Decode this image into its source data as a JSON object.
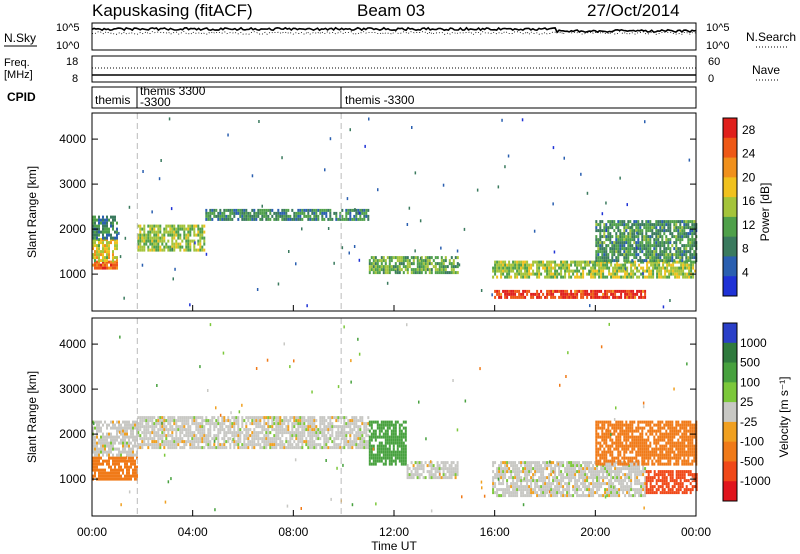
{
  "header": {
    "station": "Kapuskasing (fitACF)",
    "beam": "Beam 03",
    "date": "27/Oct/2014"
  },
  "top_panels": {
    "nsky_label": "N.Sky",
    "nsky_ticks": [
      "10^5",
      "10^0"
    ],
    "nsearch_label": "N.Search",
    "nsearch_ticks": [
      "10^5",
      "10^0"
    ],
    "freq_label": "Freq.",
    "freq_unit": "[MHz]",
    "freq_ticks": [
      "18",
      "8"
    ],
    "nave_label": "Nave",
    "nave_ticks": [
      "60",
      "0"
    ],
    "cpid_label": "CPID",
    "cpid_segments": [
      {
        "start": 0.0,
        "end": 1.8,
        "lines": [
          "themis"
        ]
      },
      {
        "start": 1.8,
        "end": 9.9,
        "lines": [
          "themis 3300",
          "-3300"
        ]
      },
      {
        "start": 9.9,
        "end": 24.0,
        "lines": [
          "themis -3300"
        ]
      }
    ]
  },
  "chart_data": [
    {
      "type": "heatmap",
      "title": "",
      "xlabel": "Time UT",
      "ylabel": "Slant Range [km]",
      "xlim": [
        0,
        24
      ],
      "ylim": [
        180,
        4580
      ],
      "x_ticks": [
        "00:00",
        "04:00",
        "08:00",
        "12:00",
        "16:00",
        "20:00",
        "00:00"
      ],
      "y_ticks": [
        1000,
        2000,
        3000,
        4000
      ],
      "colorbar": {
        "label": "Power [dB]",
        "ticks": [
          4,
          8,
          12,
          16,
          20,
          24,
          28
        ],
        "range": [
          0,
          30
        ],
        "colors": [
          "#1f32d6",
          "#2a5fb0",
          "#3a7a5e",
          "#4fa04a",
          "#a4c43a",
          "#f0c11e",
          "#f0901c",
          "#ee5816",
          "#e0201c"
        ]
      },
      "bands": [
        {
          "t0": 0.0,
          "t1": 1.0,
          "r0": 1100,
          "r1": 1300,
          "value": 24
        },
        {
          "t0": 0.0,
          "t1": 1.0,
          "r0": 1300,
          "r1": 1800,
          "value": 17
        },
        {
          "t0": 0.0,
          "t1": 1.0,
          "r0": 1800,
          "r1": 2300,
          "value": 8
        },
        {
          "t0": 1.8,
          "t1": 4.5,
          "r0": 1500,
          "r1": 2100,
          "value": 14
        },
        {
          "t0": 4.5,
          "t1": 11.0,
          "r0": 2200,
          "r1": 2450,
          "value": 9
        },
        {
          "t0": 11.0,
          "t1": 14.5,
          "r0": 1000,
          "r1": 1400,
          "value": 12
        },
        {
          "t0": 15.9,
          "t1": 22.0,
          "r0": 450,
          "r1": 650,
          "value": 27
        },
        {
          "t0": 15.9,
          "t1": 24.0,
          "r0": 900,
          "r1": 1300,
          "value": 15
        },
        {
          "t0": 20.0,
          "t1": 24.0,
          "r0": 1300,
          "r1": 2200,
          "value": 10
        }
      ]
    },
    {
      "type": "heatmap",
      "title": "",
      "xlabel": "Time UT",
      "ylabel": "Slant Range [km]",
      "xlim": [
        0,
        24
      ],
      "ylim": [
        180,
        4580
      ],
      "x_ticks": [
        "00:00",
        "04:00",
        "08:00",
        "12:00",
        "16:00",
        "20:00",
        "00:00"
      ],
      "y_ticks": [
        1000,
        2000,
        3000,
        4000
      ],
      "colorbar": {
        "label": "Velocity [m s⁻¹]",
        "ticks": [
          1000,
          500,
          100,
          25,
          -25,
          -100,
          -500,
          -1000
        ],
        "colors": [
          "#2a3fc8",
          "#2f7a3d",
          "#47a13e",
          "#7cc83a",
          "#c8c8c4",
          "#f0a020",
          "#f07a18",
          "#f04818",
          "#e0141c"
        ]
      },
      "bands": [
        {
          "t0": 0.0,
          "t1": 1.8,
          "r0": 1000,
          "r1": 1500,
          "value": -300
        },
        {
          "t0": 0.0,
          "t1": 1.8,
          "r0": 1500,
          "r1": 2300,
          "value": 0
        },
        {
          "t0": 1.8,
          "t1": 11.0,
          "r0": 1700,
          "r1": 2400,
          "value": 0
        },
        {
          "t0": 11.0,
          "t1": 12.5,
          "r0": 1300,
          "r1": 2300,
          "value": 150
        },
        {
          "t0": 12.5,
          "t1": 14.5,
          "r0": 1000,
          "r1": 1400,
          "value": 0
        },
        {
          "t0": 15.9,
          "t1": 22.0,
          "r0": 600,
          "r1": 1400,
          "value": 0
        },
        {
          "t0": 20.0,
          "t1": 24.0,
          "r0": 1300,
          "r1": 2300,
          "value": -200
        },
        {
          "t0": 22.0,
          "t1": 24.0,
          "r0": 700,
          "r1": 1200,
          "value": -600
        }
      ]
    }
  ]
}
